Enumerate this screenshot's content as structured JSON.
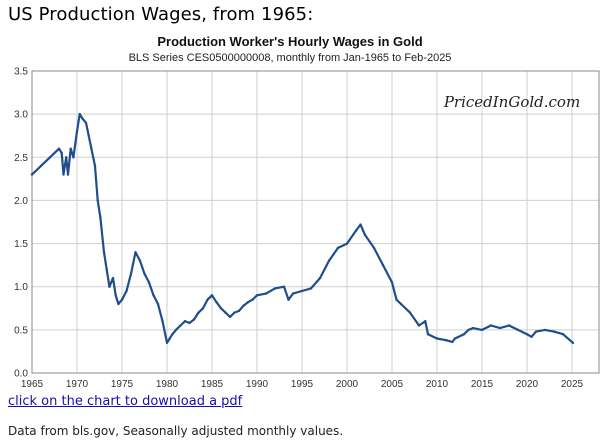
{
  "page": {
    "heading": "US Production Wages, from 1965:",
    "link_text": "click on the chart to download a pdf",
    "footnote": "Data from bls.gov, Seasonally adjusted monthly values."
  },
  "colors": {
    "line": "#1f4e8c",
    "grid": "#cfcfcf",
    "axis": "#888888",
    "link": "#1a0dab"
  },
  "chart_data": {
    "type": "line",
    "title": "Production Worker's Hourly Wages in Gold",
    "subtitle": "BLS Series CES0500000008, monthly from Jan-1965 to Feb-2025",
    "watermark": "PricedInGold.com",
    "xlabel": "",
    "ylabel": "",
    "xlim": [
      1965,
      2028
    ],
    "ylim": [
      0,
      3.5
    ],
    "grid": true,
    "x_ticks": [
      1965,
      1970,
      1975,
      1980,
      1985,
      1990,
      1995,
      2000,
      2005,
      2010,
      2015,
      2020,
      2025
    ],
    "y_ticks": [
      0.0,
      0.5,
      1.0,
      1.5,
      2.0,
      2.5,
      3.0,
      3.5
    ],
    "series": [
      {
        "name": "Production Worker's Hourly Wages in Gold",
        "x": [
          1965.0,
          1966.0,
          1967.0,
          1968.0,
          1968.3,
          1968.5,
          1968.8,
          1969.0,
          1969.3,
          1969.6,
          1970.0,
          1970.3,
          1970.6,
          1971.0,
          1971.3,
          1971.6,
          1972.0,
          1972.3,
          1972.6,
          1973.0,
          1973.3,
          1973.6,
          1974.0,
          1974.3,
          1974.6,
          1975.0,
          1975.5,
          1976.0,
          1976.5,
          1977.0,
          1977.5,
          1978.0,
          1978.5,
          1979.0,
          1979.5,
          1980.0,
          1980.3,
          1980.6,
          1981.0,
          1981.5,
          1982.0,
          1982.5,
          1983.0,
          1983.5,
          1984.0,
          1984.5,
          1985.0,
          1985.5,
          1986.0,
          1986.5,
          1987.0,
          1987.5,
          1988.0,
          1988.5,
          1989.0,
          1989.5,
          1990.0,
          1991.0,
          1992.0,
          1993.0,
          1993.5,
          1994.0,
          1995.0,
          1996.0,
          1997.0,
          1998.0,
          1999.0,
          2000.0,
          2001.0,
          2001.5,
          2002.0,
          2003.0,
          2004.0,
          2005.0,
          2005.5,
          2006.0,
          2007.0,
          2008.0,
          2008.7,
          2009.0,
          2010.0,
          2011.0,
          2011.7,
          2012.0,
          2013.0,
          2013.5,
          2014.0,
          2015.0,
          2016.0,
          2017.0,
          2018.0,
          2019.0,
          2020.0,
          2020.5,
          2021.0,
          2022.0,
          2023.0,
          2024.0,
          2025.1
        ],
        "values": [
          2.3,
          2.4,
          2.5,
          2.6,
          2.55,
          2.3,
          2.5,
          2.3,
          2.6,
          2.5,
          2.8,
          3.0,
          2.95,
          2.9,
          2.75,
          2.6,
          2.4,
          2.0,
          1.8,
          1.4,
          1.2,
          1.0,
          1.1,
          0.9,
          0.8,
          0.85,
          0.95,
          1.15,
          1.4,
          1.3,
          1.15,
          1.05,
          0.9,
          0.8,
          0.6,
          0.35,
          0.4,
          0.45,
          0.5,
          0.55,
          0.6,
          0.58,
          0.62,
          0.7,
          0.75,
          0.85,
          0.9,
          0.82,
          0.75,
          0.7,
          0.65,
          0.7,
          0.72,
          0.78,
          0.82,
          0.85,
          0.9,
          0.92,
          0.98,
          1.0,
          0.85,
          0.92,
          0.95,
          0.98,
          1.1,
          1.3,
          1.45,
          1.5,
          1.65,
          1.72,
          1.6,
          1.45,
          1.25,
          1.05,
          0.85,
          0.8,
          0.7,
          0.55,
          0.6,
          0.45,
          0.4,
          0.38,
          0.36,
          0.4,
          0.45,
          0.5,
          0.52,
          0.5,
          0.55,
          0.52,
          0.55,
          0.5,
          0.45,
          0.42,
          0.48,
          0.5,
          0.48,
          0.45,
          0.35
        ]
      }
    ]
  }
}
